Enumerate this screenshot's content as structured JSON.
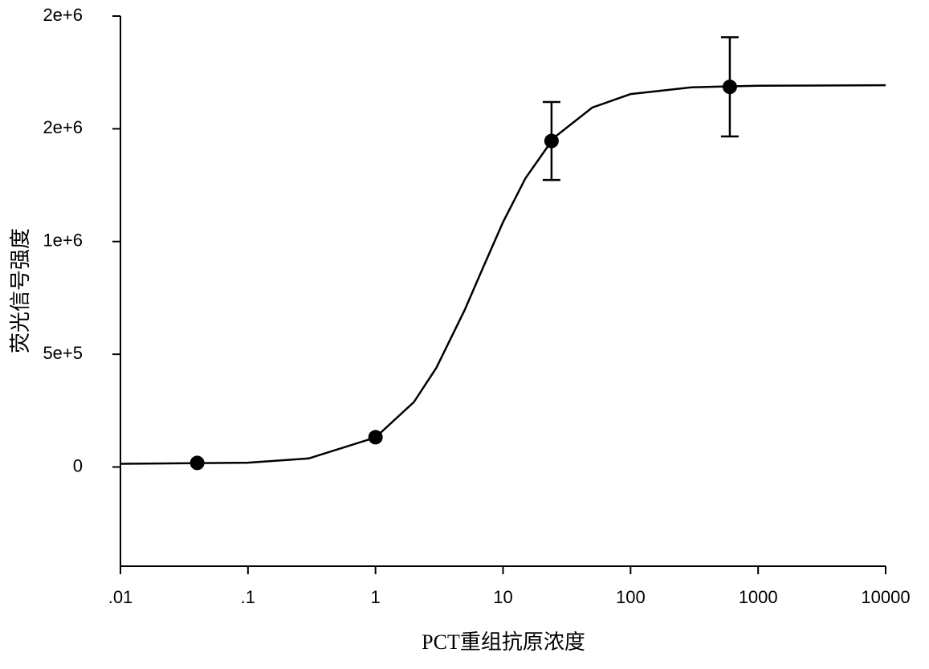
{
  "chart_data": {
    "type": "line",
    "xlabel": "PCT重组抗原浓度",
    "ylabel": "荧光信号强度",
    "xscale": "log",
    "xlim": [
      0.01,
      10000
    ],
    "xticks": [
      {
        "value": 0.01,
        "label": ".01"
      },
      {
        "value": 0.1,
        "label": ".1"
      },
      1,
      10,
      100,
      1000,
      10000
    ],
    "ylim": [
      -440000,
      2000000
    ],
    "yticks": [
      0,
      {
        "value": 500000,
        "label": "5e+5"
      },
      {
        "value": 1000000,
        "label": "1e+6"
      },
      {
        "value": 1500000,
        "label": "2e+6"
      },
      {
        "value": 2000000,
        "label": "2e+6"
      }
    ],
    "series": [
      {
        "type": "line",
        "color": "#000000",
        "x": [
          0.01,
          0.1,
          0.3,
          1,
          2,
          3,
          5,
          7,
          10,
          15,
          25,
          50,
          100,
          300,
          1000,
          10000
        ],
        "values": [
          14000,
          19000,
          38000,
          131000,
          288000,
          440000,
          696000,
          887000,
          1086000,
          1281000,
          1460000,
          1594000,
          1654000,
          1684000,
          1691000,
          1693000
        ]
      },
      {
        "type": "scatter",
        "color": "#000000",
        "x": [
          0.04,
          1,
          24,
          600
        ],
        "values": [
          18000,
          132000,
          1446000,
          1686000
        ],
        "errors": [
          0,
          0,
          173000,
          220000
        ]
      }
    ]
  }
}
